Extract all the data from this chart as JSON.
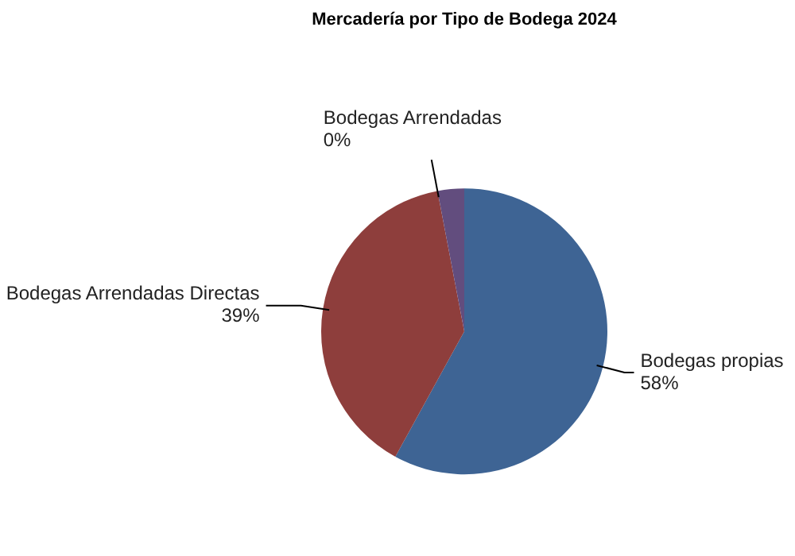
{
  "chart_data": {
    "type": "pie",
    "title": "Mercadería por Tipo de Bodega 2024",
    "categories": [
      "Bodegas propias",
      "Bodegas Arrendadas Directas",
      "Bodegas Arrendadas",
      null
    ],
    "values": [
      58,
      39,
      0,
      3
    ],
    "value_labels": [
      "58%",
      "39%",
      "0%",
      null
    ],
    "colors": [
      "#3e6494",
      "#8e3e3c",
      "#7a9a3c",
      "#624d7e"
    ],
    "legend": false
  }
}
